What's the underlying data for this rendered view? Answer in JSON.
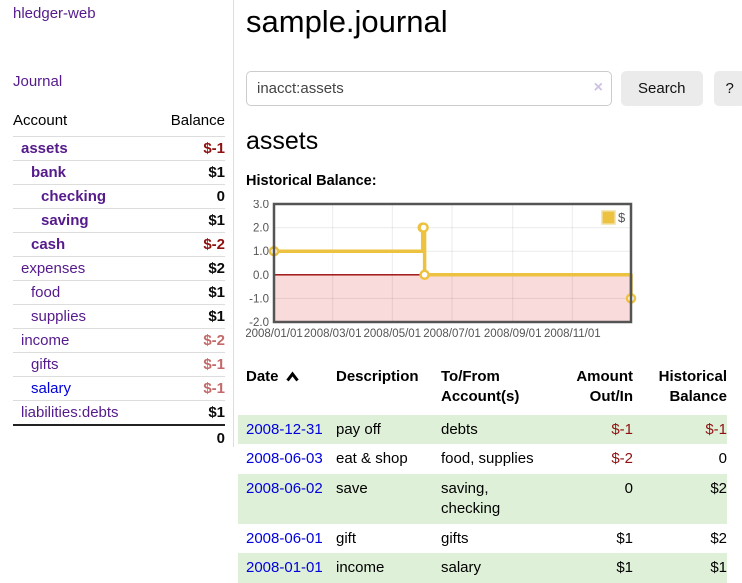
{
  "app": {
    "brand": "hledger-web"
  },
  "sidebar": {
    "nav": {
      "journal_label": "Journal"
    },
    "accounts_table": {
      "headers": [
        "Account",
        "Balance"
      ],
      "rows": [
        {
          "account": "assets",
          "balance": "$-1",
          "indent": 1,
          "bold": true,
          "balance_color": "negative-strong",
          "link_color": "purple"
        },
        {
          "account": "bank",
          "balance": "$1",
          "indent": 2,
          "bold": true,
          "balance_color": "normal",
          "link_color": "purple"
        },
        {
          "account": "checking",
          "balance": "0",
          "indent": 3,
          "bold": true,
          "balance_color": "normal",
          "link_color": "purple"
        },
        {
          "account": "saving",
          "balance": "$1",
          "indent": 3,
          "bold": true,
          "balance_color": "normal",
          "link_color": "purple"
        },
        {
          "account": "cash",
          "balance": "$-2",
          "indent": 2,
          "bold": true,
          "balance_color": "negative-strong",
          "link_color": "purple"
        },
        {
          "account": "expenses",
          "balance": "$2",
          "indent": 1,
          "bold": false,
          "balance_color": "normal",
          "link_color": "purple"
        },
        {
          "account": "food",
          "balance": "$1",
          "indent": 2,
          "bold": false,
          "balance_color": "normal",
          "link_color": "purple"
        },
        {
          "account": "supplies",
          "balance": "$1",
          "indent": 2,
          "bold": false,
          "balance_color": "normal",
          "link_color": "purple"
        },
        {
          "account": "income",
          "balance": "$-2",
          "indent": 1,
          "bold": false,
          "balance_color": "negative-soft",
          "link_color": "purple"
        },
        {
          "account": "gifts",
          "balance": "$-1",
          "indent": 2,
          "bold": false,
          "balance_color": "negative-soft",
          "link_color": "purple"
        },
        {
          "account": "salary",
          "balance": "$-1",
          "indent": 2,
          "bold": false,
          "balance_color": "negative-soft",
          "link_color": "blue"
        },
        {
          "account": "liabilities:debts",
          "balance": "$1",
          "indent": 1,
          "bold": false,
          "balance_color": "normal",
          "link_color": "purple"
        }
      ],
      "total": "0"
    }
  },
  "main": {
    "title": "sample.journal",
    "search": {
      "value": "inacct:assets",
      "clear_icon": "×",
      "button_label": "Search",
      "help_label": "?"
    },
    "account_heading": "assets",
    "chart_heading": "Historical Balance:"
  },
  "chart_data": {
    "type": "line",
    "title": "Historical Balance",
    "step": true,
    "xlim": [
      "2008-01-01",
      "2008-12-31"
    ],
    "ylim": [
      -2,
      3
    ],
    "y_ticks": [
      3.0,
      2.0,
      1.0,
      0.0,
      -1.0,
      -2.0
    ],
    "x_ticks": [
      "2008/01/01",
      "2008/03/01",
      "2008/05/01",
      "2008/07/01",
      "2008/09/01",
      "2008/11/01"
    ],
    "grid": true,
    "legend": {
      "label": "$",
      "position": "top-right"
    },
    "series": [
      {
        "name": "$",
        "color": "#edc240",
        "points": [
          {
            "date": "2008-01-01",
            "value": 1
          },
          {
            "date": "2008-06-01",
            "value": 2
          },
          {
            "date": "2008-06-02",
            "value": 2
          },
          {
            "date": "2008-06-03",
            "value": 0
          },
          {
            "date": "2008-12-31",
            "value": -1
          }
        ]
      }
    ],
    "negative_region_color": "#fadbdb",
    "zero_line_color": "#9a0000",
    "border_color": "#545454",
    "label_color": "#545454"
  },
  "register_table": {
    "headers": [
      {
        "lines": [
          "Date"
        ],
        "align": "left",
        "sort_icon": "chevron-up"
      },
      {
        "lines": [
          "Description"
        ],
        "align": "left"
      },
      {
        "lines": [
          "To/From",
          "Account(s)"
        ],
        "align": "left"
      },
      {
        "lines": [
          "Amount",
          "Out/In"
        ],
        "align": "right"
      },
      {
        "lines": [
          "Historical",
          "Balance"
        ],
        "align": "right"
      }
    ],
    "rows": [
      {
        "date": "2008-12-31",
        "description": "pay off",
        "accounts": "debts",
        "amount": "$-1",
        "amount_negative": true,
        "balance": "$-1",
        "balance_negative": true,
        "shaded": true
      },
      {
        "date": "2008-06-03",
        "description": "eat & shop",
        "accounts": "food, supplies",
        "amount": "$-2",
        "amount_negative": true,
        "balance": "0",
        "balance_negative": false,
        "shaded": false
      },
      {
        "date": "2008-06-02",
        "description": "save",
        "accounts": "saving, checking",
        "amount": "0",
        "amount_negative": false,
        "balance": "$2",
        "balance_negative": false,
        "shaded": true
      },
      {
        "date": "2008-06-01",
        "description": "gift",
        "accounts": "gifts",
        "amount": "$1",
        "amount_negative": false,
        "balance": "$2",
        "balance_negative": false,
        "shaded": false
      },
      {
        "date": "2008-01-01",
        "description": "income",
        "accounts": "salary",
        "amount": "$1",
        "amount_negative": false,
        "balance": "$1",
        "balance_negative": false,
        "shaded": true
      }
    ]
  },
  "colors": {
    "accent_purple": "#551a8b",
    "link_blue": "#0000dd",
    "negative_strong": "#8f1010",
    "negative_soft": "#c46a6a",
    "stripe_green": "#dff0d8",
    "chart_gold": "#edc240",
    "negative_region_pink": "#fadbdb",
    "zero_line_red": "#9a0000"
  }
}
